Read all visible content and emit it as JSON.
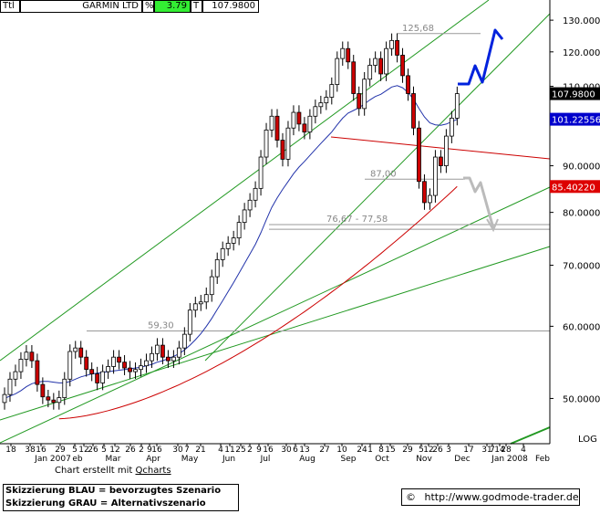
{
  "header": {
    "ticker": "Ttl",
    "name": "GARMIN LTD",
    "pct_label": "%",
    "pct_value": "3.79",
    "t_label": "T",
    "last_price": "107.9800"
  },
  "footer": {
    "made_prefix": "Chart erstellt mit ",
    "made_tool": "Qcharts",
    "legend_blue": "Skizzierung BLAU = bevorzugtes Szenario",
    "legend_gray": "Skizzierung GRAU = Alternativszenario",
    "copyright": "©",
    "url": "http://www.godmode-trader.de"
  },
  "chart_data": {
    "type": "candlestick",
    "scale": "log",
    "grid": false,
    "ylim": [
      44.6,
      136.8
    ],
    "y_ticks": [
      "130.0000",
      "120.0000",
      "110.0000",
      "90.0000",
      "80.0000",
      "70.0000",
      "60.0000",
      "50.0000"
    ],
    "y_tick_values": [
      130,
      120,
      110,
      90,
      80,
      70,
      60,
      50
    ],
    "axis_note": "LOG",
    "price_tags": [
      {
        "label": "107.9800",
        "value": 107.98,
        "bg": "#000000",
        "fg": "#ffffff"
      },
      {
        "label": "101.22556",
        "value": 101.22556,
        "bg": "#0000cc",
        "fg": "#ffffff"
      },
      {
        "label": "85.40220",
        "value": 85.4022,
        "bg": "#dd0000",
        "fg": "#ffffff"
      }
    ],
    "x_day_labels": [
      "18",
      "38",
      "16",
      "29",
      "5",
      "12",
      "26",
      "5",
      "12",
      "26",
      "2",
      "9",
      "16",
      "30",
      "7",
      "21",
      "4",
      "11",
      "25",
      "2",
      "9",
      "16",
      "30",
      "6",
      "13",
      "27",
      "10",
      "24",
      "1",
      "8",
      "15",
      "29",
      "5",
      "12",
      "26",
      "3",
      "17",
      "31",
      "7",
      "14",
      "28",
      "4"
    ],
    "x_month_labels": [
      "Jan 2007",
      "eb",
      "Mar",
      "Apr",
      "May",
      "Jun",
      "Jul",
      "Aug",
      "Sep",
      "Oct",
      "Nov",
      "Dec",
      "Jan 2008",
      "Feb"
    ],
    "levels": [
      {
        "label": "125,68",
        "value": 125.68
      },
      {
        "label": "87,00",
        "value": 87.0
      },
      {
        "label": "76,67 - 77,58",
        "values": [
          76.67,
          77.58
        ]
      },
      {
        "label": "59,30",
        "value": 59.3
      }
    ],
    "series": [
      {
        "name": "",
        "color": "#000000",
        "values": [
          50.5,
          52.5,
          53.5,
          55.2,
          56.2,
          55.0,
          51.8,
          50.2,
          49.8,
          49.5,
          50.1,
          52.5,
          56.3,
          56.8,
          55.5,
          53.8,
          53.2,
          52.0,
          53.5,
          54.2,
          55.5,
          54.8,
          54.0,
          53.5,
          53.8,
          54.3,
          55.0,
          56.0,
          57.2,
          55.5,
          55.0,
          55.5,
          56.8,
          58.8,
          62.5,
          63.5,
          63.8,
          65.0,
          68.0,
          71.0,
          73.0,
          74.0,
          75.0,
          78.0,
          80.5,
          82.5,
          85.0,
          92.0,
          98.5,
          102.0,
          96.0,
          91.5,
          99.0,
          103.0,
          100.0,
          98.0,
          102.0,
          104.5,
          105.5,
          107.0,
          110.5,
          118.0,
          121.0,
          117.0,
          108.0,
          104.0,
          112.0,
          116.0,
          118.0,
          113.5,
          121.0,
          123.5,
          119.0,
          113.0,
          108.0,
          99.0,
          86.5,
          82.0,
          83.5,
          92.0,
          90.0,
          97.0,
          101.5,
          107.98
        ]
      },
      {
        "name": "",
        "color": "#2233aa",
        "values": [
          50.0,
          50.3,
          50.6,
          51.0,
          51.5,
          51.9,
          52.1,
          52.2,
          52.2,
          52.1,
          52.0,
          52.0,
          52.2,
          52.5,
          52.8,
          53.0,
          53.2,
          53.3,
          53.4,
          53.5,
          53.6,
          53.7,
          53.8,
          53.9,
          54.0,
          54.1,
          54.3,
          54.5,
          54.8,
          55.0,
          55.3,
          55.6,
          56.0,
          56.5,
          57.2,
          58.0,
          58.9,
          60.0,
          61.2,
          62.6,
          64.0,
          65.5,
          67.0,
          68.6,
          70.3,
          72.0,
          73.8,
          76.0,
          78.5,
          81.0,
          83.0,
          84.8,
          86.5,
          88.2,
          89.7,
          91.0,
          92.4,
          93.8,
          95.2,
          96.6,
          98.0,
          99.8,
          101.5,
          102.8,
          103.5,
          104.2,
          105.2,
          106.3,
          107.2,
          107.8,
          108.8,
          109.8,
          110.2,
          109.6,
          108.3,
          106.5,
          104.0,
          101.8,
          100.3,
          99.8,
          99.7,
          100.0,
          100.6,
          101.2
        ]
      },
      {
        "name": "",
        "color": "#cc0000",
        "values": [
          null,
          null,
          null,
          null,
          null,
          null,
          null,
          null,
          null,
          null,
          null,
          null,
          null,
          null,
          null,
          null,
          null,
          null,
          null,
          null,
          null,
          null,
          null,
          null,
          null,
          null,
          null,
          null,
          null,
          null,
          null,
          null,
          null,
          null,
          null,
          null,
          null,
          null,
          null,
          null,
          null,
          null,
          null,
          null,
          null,
          null,
          null,
          null,
          null,
          null,
          null,
          null,
          null,
          null,
          null,
          null,
          null,
          null,
          null,
          null,
          null,
          null,
          null,
          null,
          null,
          null,
          null,
          null,
          null,
          null,
          null,
          null,
          null,
          null,
          null,
          null,
          null,
          null,
          null,
          null,
          null,
          null,
          null,
          85.4
        ]
      }
    ]
  }
}
